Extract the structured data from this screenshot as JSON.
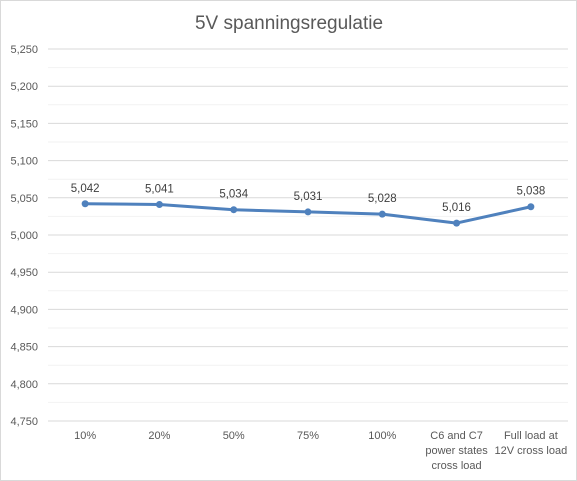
{
  "chart_data": {
    "type": "line",
    "title": "5V spanningsregulatie",
    "xlabel": "",
    "ylabel": "",
    "categories": [
      [
        "10%"
      ],
      [
        "20%"
      ],
      [
        "50%"
      ],
      [
        "75%"
      ],
      [
        "100%"
      ],
      [
        "C6 and C7",
        "power states",
        "cross load"
      ],
      [
        "Full load at",
        "12V cross load"
      ]
    ],
    "series": [
      {
        "values": [
          5.042,
          5.041,
          5.034,
          5.031,
          5.028,
          5.016,
          5.038
        ],
        "data_labels": [
          "5,042",
          "5,041",
          "5,034",
          "5,031",
          "5,028",
          "5,016",
          "5,038"
        ],
        "color": "#4f81bd"
      }
    ],
    "ylim": [
      4.75,
      5.25
    ],
    "yticks": [
      5.25,
      5.2,
      5.15,
      5.1,
      5.05,
      5.0,
      4.95,
      4.9,
      4.85,
      4.8,
      4.75
    ],
    "ytick_labels": [
      "5,250",
      "5,200",
      "5,150",
      "5,100",
      "5,050",
      "5,000",
      "4,950",
      "4,900",
      "4,850",
      "4,800",
      "4,750"
    ],
    "grid": true,
    "legend": "none",
    "colors": {
      "major_grid": "#d9d9d9",
      "minor_grid": "#f2f2f2",
      "text": "#595959"
    }
  }
}
